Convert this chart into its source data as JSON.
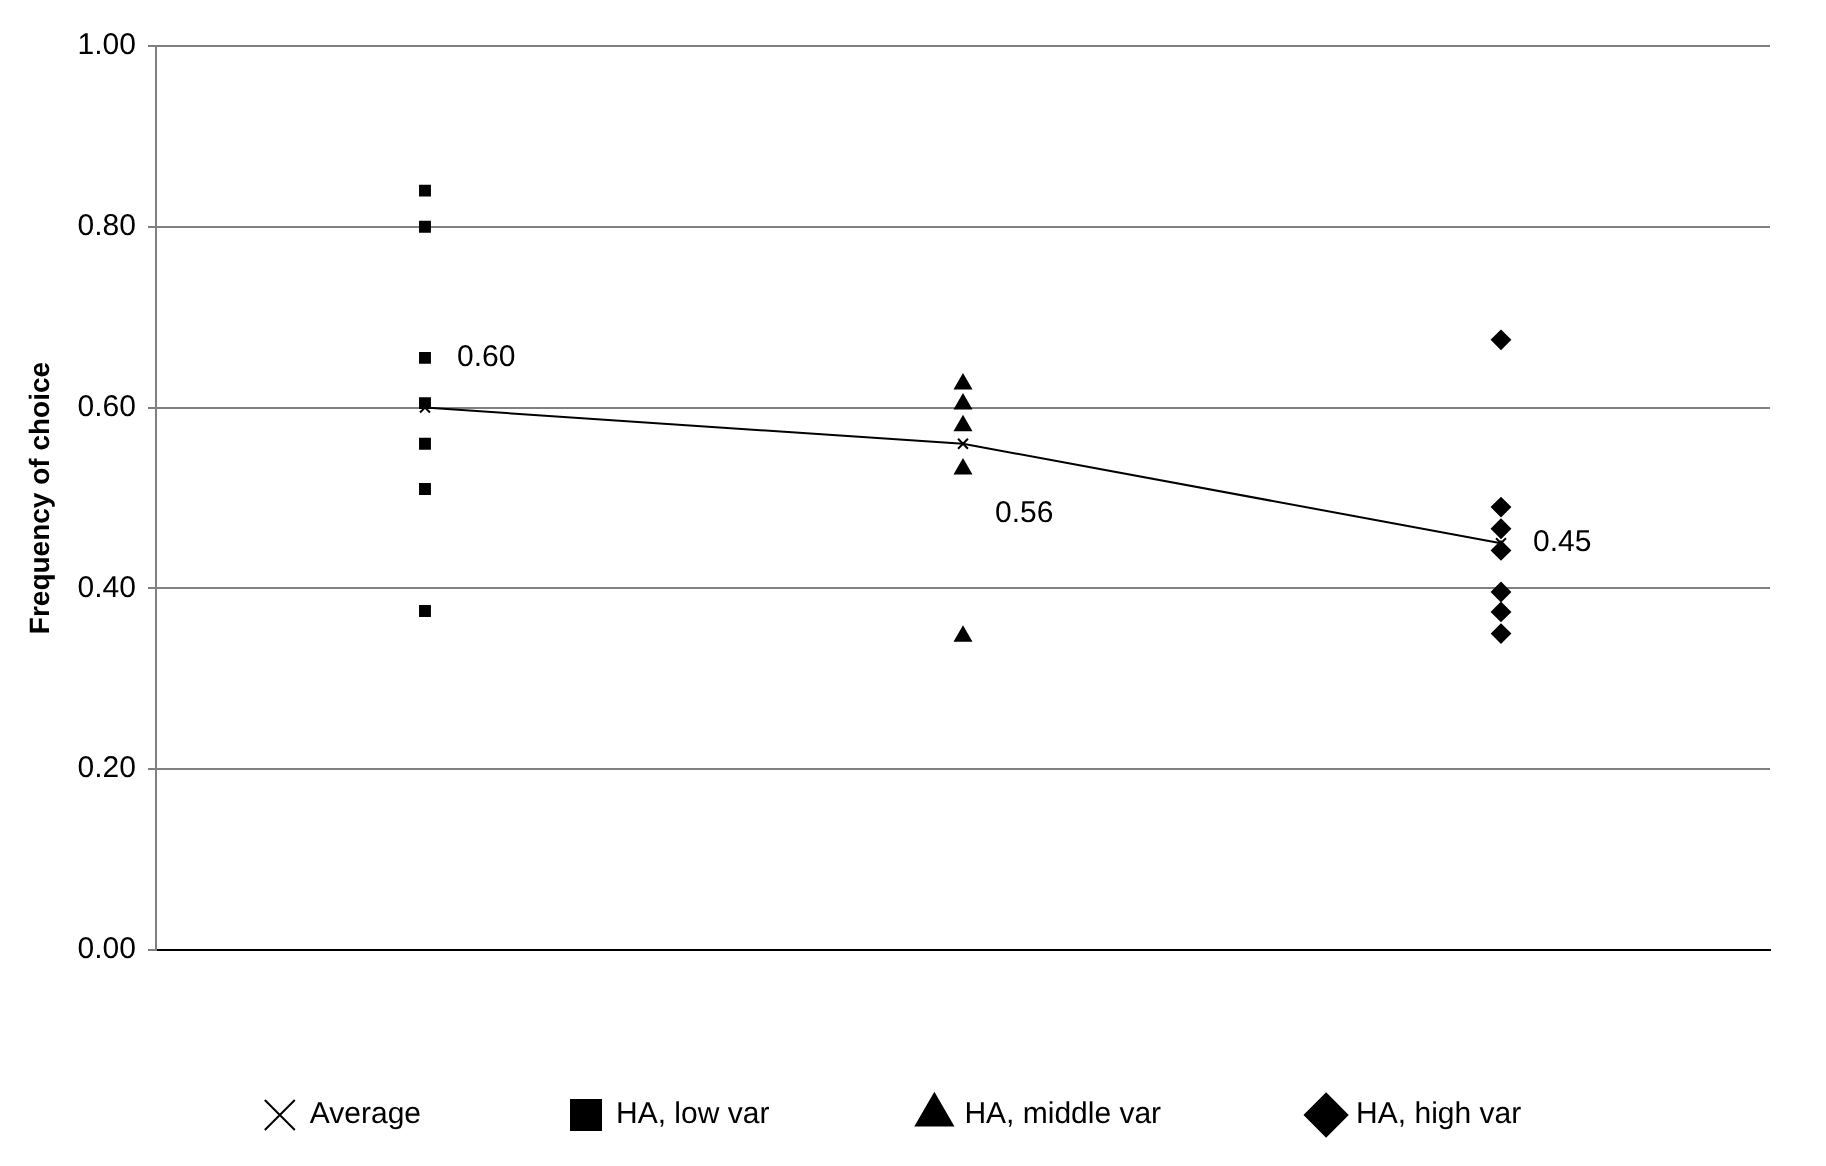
{
  "chart_data": {
    "type": "scatter",
    "ylabel": "Frequency of choice",
    "categories": [
      null,
      null,
      null
    ],
    "ylim": [
      0,
      1
    ],
    "yticks": [
      {
        "value": 0,
        "label": "0.00"
      },
      {
        "value": 0.2,
        "label": "0.20"
      },
      {
        "value": 0.4,
        "label": "0.40"
      },
      {
        "value": 0.6,
        "label": "0.60"
      },
      {
        "value": 0.8,
        "label": "0.80"
      },
      {
        "value": 1,
        "label": "1.00"
      }
    ],
    "tick_labels": "y",
    "grid": "y",
    "legend": "bottom",
    "series": [
      {
        "name": "Average",
        "type": "line",
        "marker": "cross",
        "color": "#000000",
        "values": [
          0.6,
          0.56,
          0.45
        ],
        "value_labels": [
          "0.60",
          "0.56",
          "0.45"
        ]
      },
      {
        "name": "HA, low var",
        "marker": "square",
        "color": "#000000",
        "values": [
          0.84,
          null,
          null
        ]
      },
      {
        "marker": "square",
        "color": "#000000",
        "values": [
          0.8,
          null,
          null
        ]
      },
      {
        "marker": "square",
        "color": "#000000",
        "values": [
          0.655,
          null,
          null
        ]
      },
      {
        "marker": "square",
        "color": "#000000",
        "values": [
          0.605,
          null,
          null
        ]
      },
      {
        "marker": "square",
        "color": "#000000",
        "values": [
          0.56,
          null,
          null
        ]
      },
      {
        "marker": "square",
        "color": "#000000",
        "values": [
          0.51,
          null,
          null
        ]
      },
      {
        "marker": "square",
        "color": "#000000",
        "values": [
          0.375,
          null,
          null
        ]
      },
      {
        "name": "HA, middle var",
        "marker": "triangle",
        "color": "#000000",
        "values": [
          null,
          0.626,
          null
        ]
      },
      {
        "marker": "triangle",
        "color": "#000000",
        "values": [
          null,
          0.604,
          null
        ]
      },
      {
        "marker": "triangle",
        "color": "#000000",
        "values": [
          null,
          0.58,
          null
        ]
      },
      {
        "marker": "triangle",
        "color": "#000000",
        "values": [
          null,
          0.532,
          null
        ]
      },
      {
        "marker": "triangle",
        "color": "#000000",
        "values": [
          null,
          0.347,
          null
        ]
      },
      {
        "name": "HA, high var",
        "marker": "diamond",
        "color": "#000000",
        "values": [
          null,
          null,
          0.675
        ]
      },
      {
        "marker": "diamond",
        "color": "#000000",
        "values": [
          null,
          null,
          0.49
        ]
      },
      {
        "marker": "diamond",
        "color": "#000000",
        "values": [
          null,
          null,
          0.466
        ]
      },
      {
        "marker": "diamond",
        "color": "#000000",
        "values": [
          null,
          null,
          0.442
        ]
      },
      {
        "marker": "diamond",
        "color": "#000000",
        "values": [
          null,
          null,
          0.396
        ]
      },
      {
        "marker": "diamond",
        "color": "#000000",
        "values": [
          null,
          null,
          0.374
        ]
      },
      {
        "marker": "diamond",
        "color": "#000000",
        "values": [
          null,
          null,
          0.35
        ]
      }
    ]
  }
}
